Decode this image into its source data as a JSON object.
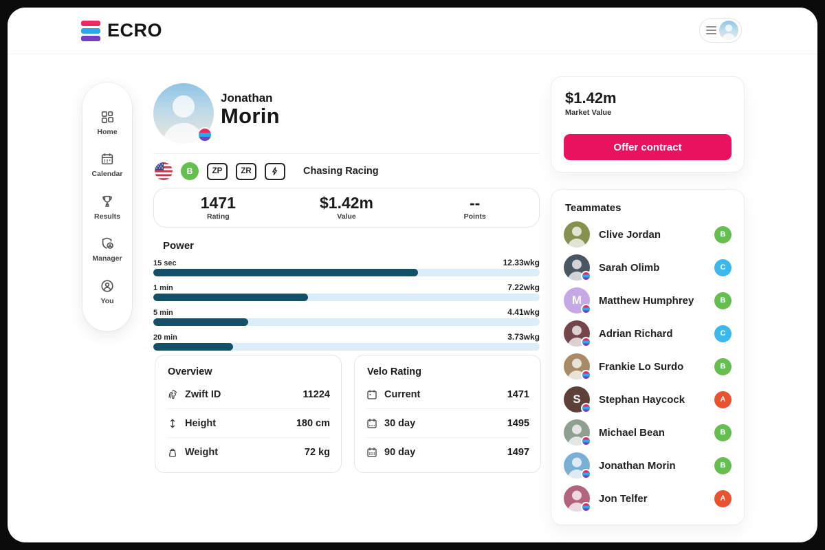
{
  "app": {
    "logo_text": "ECRO",
    "brand_colors": {
      "pink": "#EC2A5F",
      "blue": "#2EA7E9",
      "purple": "#7040C5"
    },
    "accent": "#E8125E"
  },
  "sidebar": {
    "items": [
      {
        "label": "Home",
        "icon": "grid-icon"
      },
      {
        "label": "Calendar",
        "icon": "calendar-icon"
      },
      {
        "label": "Results",
        "icon": "trophy-icon"
      },
      {
        "label": "Manager",
        "icon": "shield-user-icon"
      },
      {
        "label": "You",
        "icon": "user-circle-icon"
      }
    ]
  },
  "profile": {
    "first_name": "Jonathan",
    "last_name": "Morin",
    "nationality": "us-flag",
    "category": "B",
    "zp_badge": "ZP",
    "zr_badge": "ZR",
    "team_name": "Chasing Racing",
    "stats": [
      {
        "value": "1471",
        "label": "Rating"
      },
      {
        "value": "$1.42m",
        "label": "Value"
      },
      {
        "value": "--",
        "label": "Points"
      }
    ]
  },
  "power": {
    "title": "Power",
    "unit": "wkg",
    "max_wkg": 18,
    "bar_color": "#14506A",
    "track_color": "#DBEDF9",
    "rows": [
      {
        "label": "15 sec",
        "value": 12.33,
        "display": "12.33wkg"
      },
      {
        "label": "1 min",
        "value": 7.22,
        "display": "7.22wkg"
      },
      {
        "label": "5 min",
        "value": 4.41,
        "display": "4.41wkg"
      },
      {
        "label": "20 min",
        "value": 3.73,
        "display": "3.73wkg"
      }
    ]
  },
  "overview": {
    "title": "Overview",
    "rows": [
      {
        "icon": "fingerprint-icon",
        "label": "Zwift ID",
        "value": "11224"
      },
      {
        "icon": "height-icon",
        "label": "Height",
        "value": "180 cm"
      },
      {
        "icon": "weight-icon",
        "label": "Weight",
        "value": "72 kg"
      }
    ]
  },
  "velo_rating": {
    "title": "Velo Rating",
    "rows": [
      {
        "icon": "calendar-current-icon",
        "label": "Current",
        "value": "1471"
      },
      {
        "icon": "calendar-30-icon",
        "label": "30 day",
        "value": "1495"
      },
      {
        "icon": "calendar-90-icon",
        "label": "90 day",
        "value": "1497"
      }
    ]
  },
  "market": {
    "value": "$1.42m",
    "label": "Market Value",
    "button_label": "Offer contract"
  },
  "teammates": {
    "title": "Teammates",
    "items": [
      {
        "name": "Clive Jordan",
        "category": "B",
        "category_color": "#65BF4E",
        "avatar_bg": "#86914f",
        "initial": "",
        "ecro_badge": false
      },
      {
        "name": "Sarah Olimb",
        "category": "C",
        "category_color": "#3DB8EB",
        "avatar_bg": "#4a5661",
        "initial": "",
        "ecro_badge": true
      },
      {
        "name": "Matthew Humphrey",
        "category": "B",
        "category_color": "#65BF4E",
        "avatar_bg": "#C5A9E4",
        "initial": "M",
        "ecro_badge": true
      },
      {
        "name": "Adrian Richard",
        "category": "C",
        "category_color": "#3DB8EB",
        "avatar_bg": "#74454a",
        "initial": "",
        "ecro_badge": true
      },
      {
        "name": "Frankie Lo Surdo",
        "category": "B",
        "category_color": "#65BF4E",
        "avatar_bg": "#a88a66",
        "initial": "",
        "ecro_badge": true
      },
      {
        "name": "Stephan Haycock",
        "category": "A",
        "category_color": "#E85231",
        "avatar_bg": "#5D4037",
        "initial": "S",
        "ecro_badge": true
      },
      {
        "name": "Michael Bean",
        "category": "B",
        "category_color": "#65BF4E",
        "avatar_bg": "#90a090",
        "initial": "",
        "ecro_badge": true
      },
      {
        "name": "Jonathan Morin",
        "category": "B",
        "category_color": "#65BF4E",
        "avatar_bg": "#7ab0d4",
        "initial": "",
        "ecro_badge": true
      },
      {
        "name": "Jon Telfer",
        "category": "A",
        "category_color": "#E85231",
        "avatar_bg": "#b2647e",
        "initial": "",
        "ecro_badge": true
      }
    ]
  }
}
